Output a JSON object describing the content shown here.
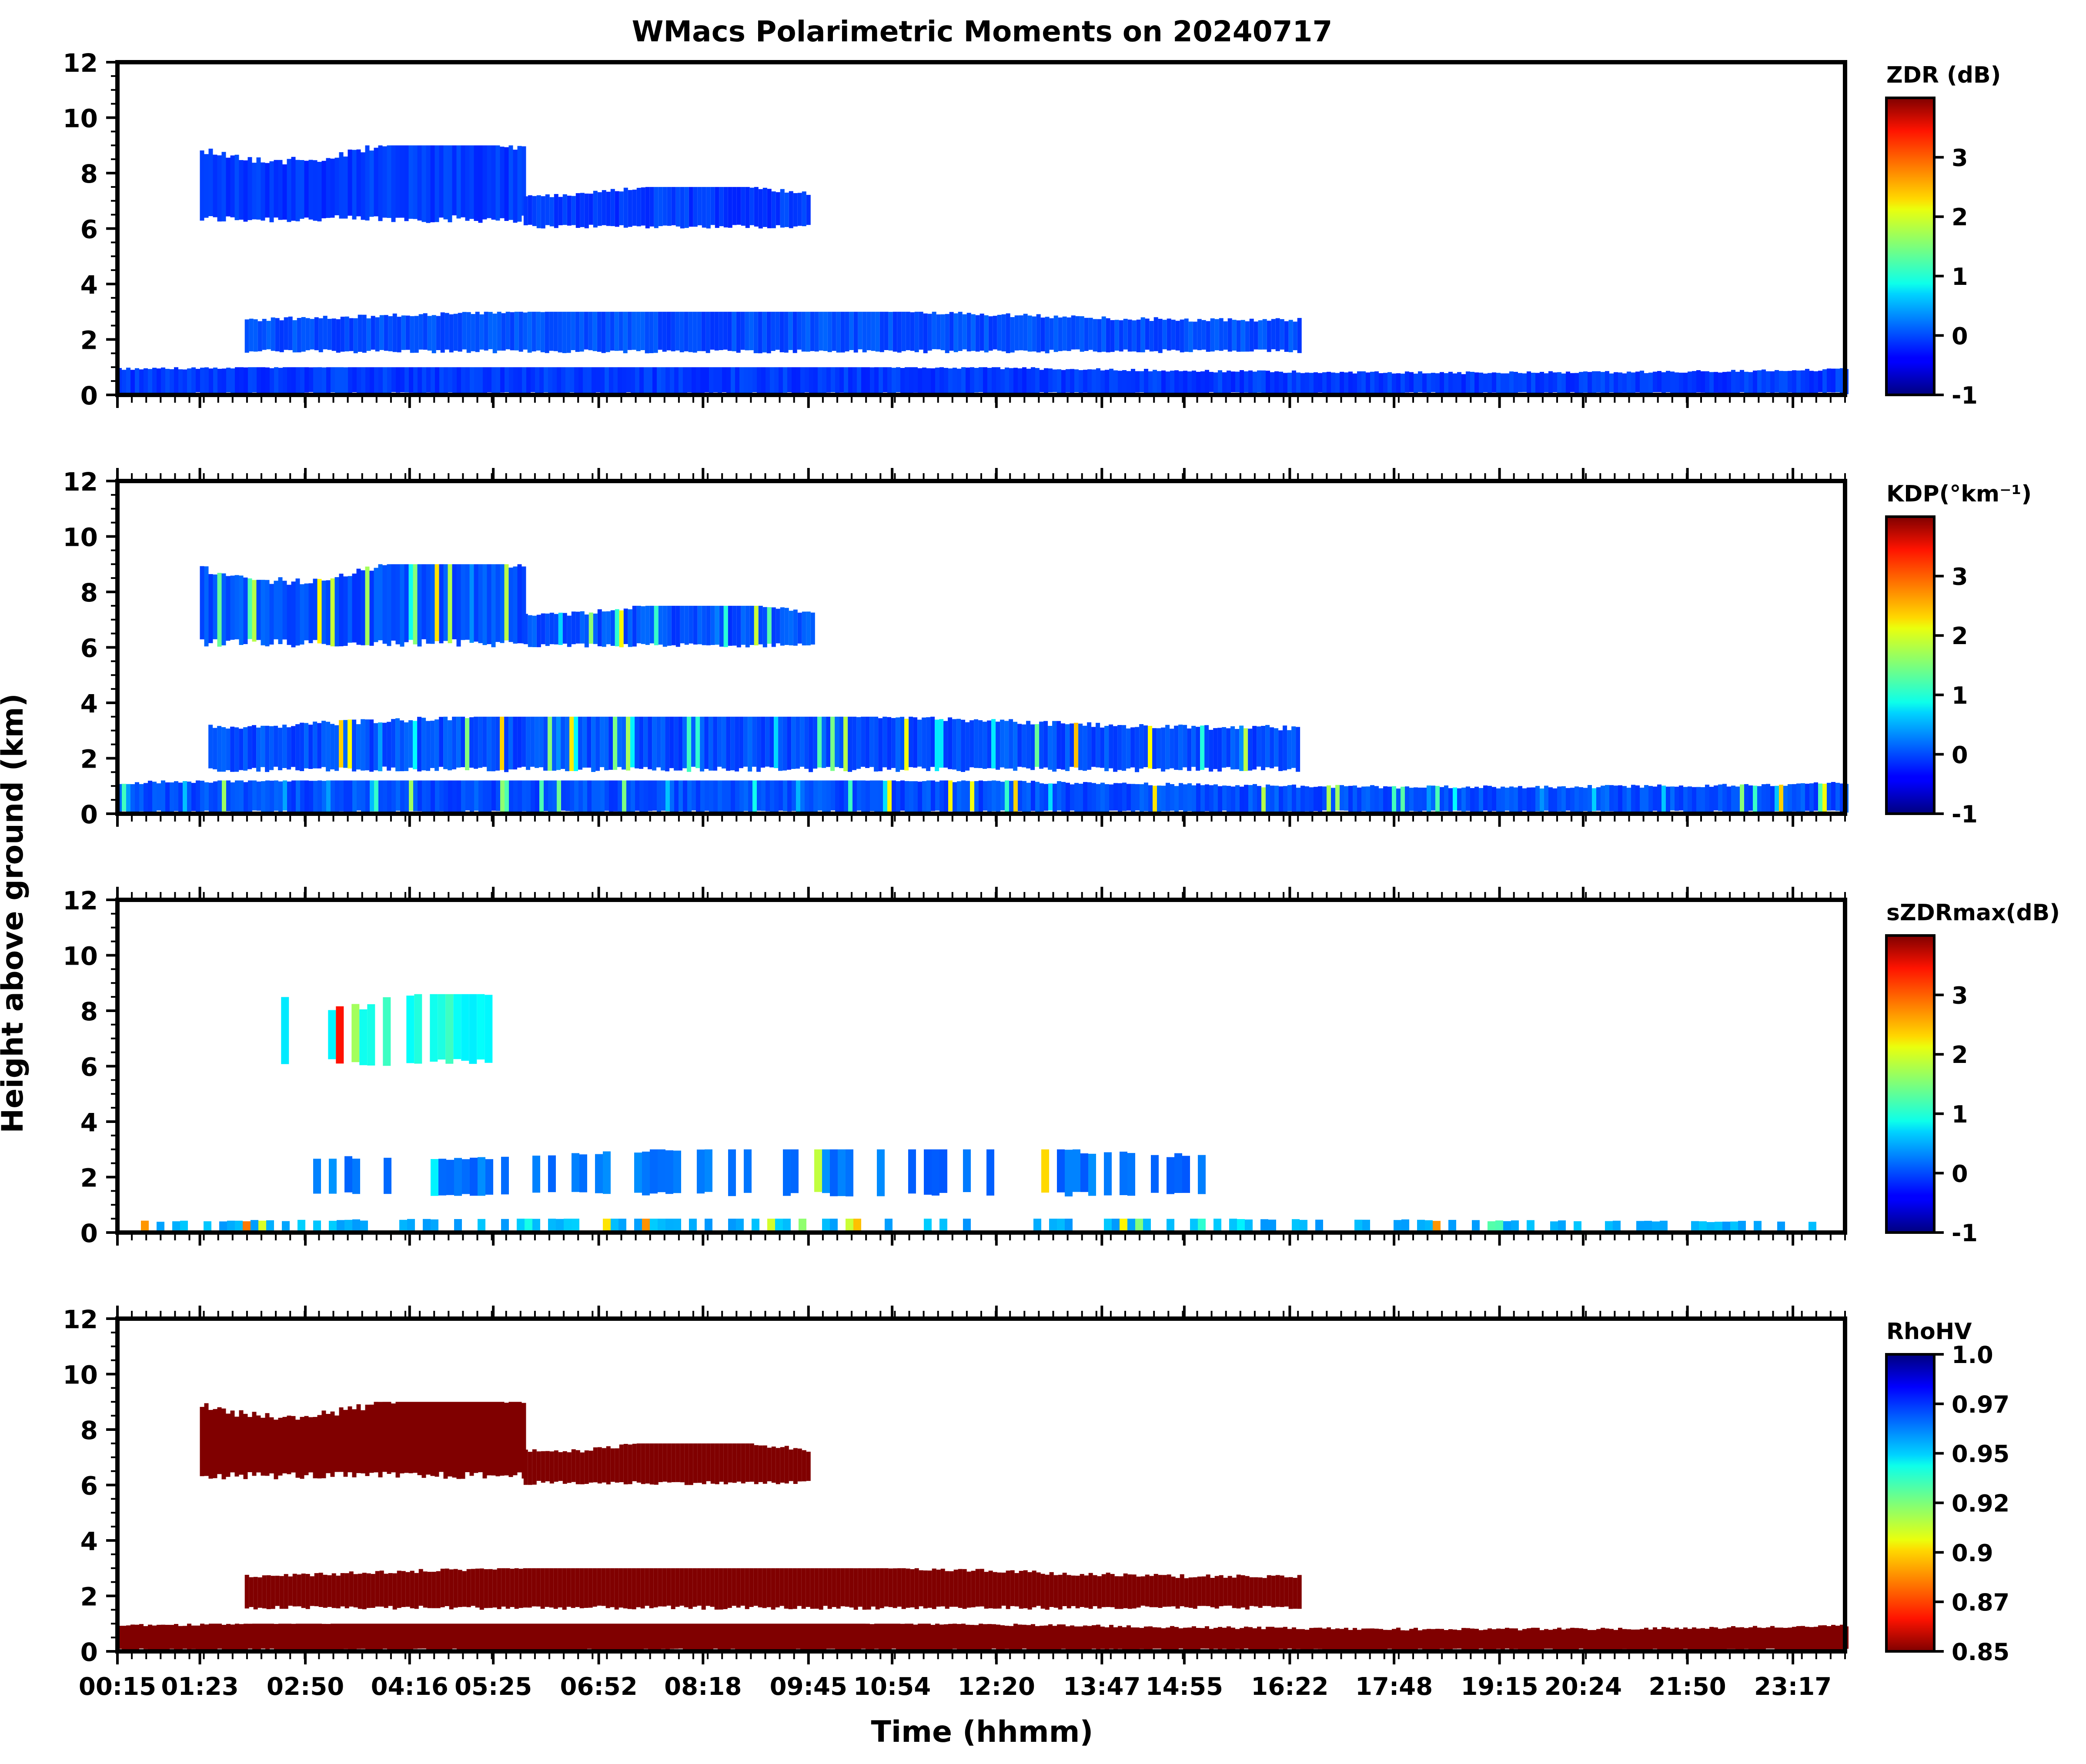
{
  "figure": {
    "title": "WMacs Polarimetric Moments on 20240717",
    "xlabel": "Time (hhmm)",
    "ylabel": "Height above ground (km)"
  },
  "chart_data": [
    {
      "type": "heatmap",
      "panel": "ZDR",
      "colorbar_label": "ZDR (dB)",
      "colorbar_range": [
        -1,
        4
      ],
      "colorbar_ticks": [
        "-1",
        "0",
        "1",
        "2",
        "3"
      ],
      "colorbar_tick_values": [
        -1,
        0,
        1,
        2,
        3
      ],
      "colormap": "jet",
      "x_range_hours": [
        0.25,
        24.0
      ],
      "x_ticks": [
        "00:15",
        "01:23",
        "02:50",
        "04:16",
        "05:25",
        "06:52",
        "08:18",
        "09:45",
        "10:54",
        "12:20",
        "13:47",
        "14:55",
        "16:22",
        "17:48",
        "19:15",
        "20:24",
        "21:50",
        "23:17"
      ],
      "ylim": [
        0,
        12
      ],
      "y_ticks": [
        "0",
        "2",
        "4",
        "6",
        "8",
        "10",
        "12"
      ],
      "features": [
        {
          "desc": "upper ice cloud",
          "t_start": "01:23",
          "t_end": "05:50",
          "z_min_km": 6.2,
          "z_max_km": 9.0,
          "value": -0.1
        },
        {
          "desc": "upper ice cloud tail",
          "t_start": "05:50",
          "t_end": "09:45",
          "z_min_km": 6.0,
          "z_max_km": 7.5,
          "value": -0.1
        },
        {
          "desc": "mid-level cloud",
          "t_start": "02:00",
          "t_end": "16:30",
          "z_min_km": 1.5,
          "z_max_km": 3.0,
          "value": 0.0
        },
        {
          "desc": "boundary-layer echoes",
          "t_start": "00:15",
          "t_end": "24:00",
          "z_min_km": 0.0,
          "z_max_km": 1.0,
          "value": -0.1
        }
      ]
    },
    {
      "type": "heatmap",
      "panel": "KDP",
      "colorbar_label": "KDP(°km⁻¹)",
      "colorbar_range": [
        -1,
        4
      ],
      "colorbar_ticks": [
        "-1",
        "0",
        "1",
        "2",
        "3"
      ],
      "colorbar_tick_values": [
        -1,
        0,
        1,
        2,
        3
      ],
      "colormap": "jet",
      "x_range_hours": [
        0.25,
        24.0
      ],
      "x_ticks": [
        "00:15",
        "01:23",
        "02:50",
        "04:16",
        "05:25",
        "06:52",
        "08:18",
        "09:45",
        "10:54",
        "12:20",
        "13:47",
        "14:55",
        "16:22",
        "17:48",
        "19:15",
        "20:24",
        "21:50",
        "23:17"
      ],
      "ylim": [
        0,
        12
      ],
      "y_ticks": [
        "0",
        "2",
        "4",
        "6",
        "8",
        "10",
        "12"
      ],
      "features": [
        {
          "desc": "upper ice cloud",
          "t_start": "01:23",
          "t_end": "05:50",
          "z_min_km": 6.0,
          "z_max_km": 9.0,
          "value": 0.0
        },
        {
          "desc": "upper ice cloud tail",
          "t_start": "05:50",
          "t_end": "09:50",
          "z_min_km": 6.0,
          "z_max_km": 7.5,
          "value": 0.0
        },
        {
          "desc": "mid-level cloud",
          "t_start": "01:30",
          "t_end": "16:30",
          "z_min_km": 1.5,
          "z_max_km": 3.5,
          "value": 0.0
        },
        {
          "desc": "boundary layer",
          "t_start": "00:15",
          "t_end": "24:00",
          "z_min_km": 0.0,
          "z_max_km": 1.2,
          "value": 0.0
        }
      ]
    },
    {
      "type": "heatmap",
      "panel": "sZDRmax",
      "colorbar_label": "sZDRmax(dB)",
      "colorbar_range": [
        -1,
        4
      ],
      "colorbar_ticks": [
        "-1",
        "0",
        "1",
        "2",
        "3"
      ],
      "colorbar_tick_values": [
        -1,
        0,
        1,
        2,
        3
      ],
      "colormap": "jet",
      "x_range_hours": [
        0.25,
        24.0
      ],
      "x_ticks": [
        "00:15",
        "01:23",
        "02:50",
        "04:16",
        "05:25",
        "06:52",
        "08:18",
        "09:45",
        "10:54",
        "12:20",
        "13:47",
        "14:55",
        "16:22",
        "17:48",
        "19:15",
        "20:24",
        "21:50",
        "23:17"
      ],
      "ylim": [
        0,
        12
      ],
      "y_ticks": [
        "0",
        "2",
        "4",
        "6",
        "8",
        "10",
        "12"
      ],
      "features": [
        {
          "desc": "upper ice streaks",
          "t_start": "02:30",
          "t_end": "05:25",
          "z_min_km": 6.0,
          "z_max_km": 8.6,
          "value": 0.9
        },
        {
          "desc": "mid-level patches",
          "t_start": "02:50",
          "t_end": "15:30",
          "z_min_km": 1.3,
          "z_max_km": 3.0,
          "value": 0.2
        },
        {
          "desc": "near-surface noise",
          "t_start": "00:15",
          "t_end": "24:00",
          "z_min_km": 0.0,
          "z_max_km": 0.5,
          "value": 0.5
        }
      ]
    },
    {
      "type": "heatmap",
      "panel": "RhoHV",
      "colorbar_label": "RhoHV",
      "colorbar_range": [
        0.85,
        1.0
      ],
      "colorbar_ticks": [
        "0.85",
        "0.87",
        "0.9",
        "0.92",
        "0.95",
        "0.97",
        "1.0"
      ],
      "colorbar_tick_values": [
        0.85,
        0.875,
        0.9,
        0.925,
        0.95,
        0.975,
        1.0
      ],
      "colormap": "jet_r",
      "x_range_hours": [
        0.25,
        24.0
      ],
      "x_ticks": [
        "00:15",
        "01:23",
        "02:50",
        "04:16",
        "05:25",
        "06:52",
        "08:18",
        "09:45",
        "10:54",
        "12:20",
        "13:47",
        "14:55",
        "16:22",
        "17:48",
        "19:15",
        "20:24",
        "21:50",
        "23:17"
      ],
      "ylim": [
        0,
        12
      ],
      "y_ticks": [
        "0",
        "2",
        "4",
        "6",
        "8",
        "10",
        "12"
      ],
      "features": [
        {
          "desc": "upper ice cloud",
          "t_start": "01:23",
          "t_end": "05:50",
          "z_min_km": 6.2,
          "z_max_km": 9.0,
          "value": 0.85
        },
        {
          "desc": "upper ice cloud tail",
          "t_start": "05:50",
          "t_end": "09:45",
          "z_min_km": 6.0,
          "z_max_km": 7.5,
          "value": 0.85
        },
        {
          "desc": "mid-level cloud",
          "t_start": "02:00",
          "t_end": "16:30",
          "z_min_km": 1.5,
          "z_max_km": 3.0,
          "value": 0.85
        },
        {
          "desc": "boundary layer",
          "t_start": "00:15",
          "t_end": "24:00",
          "z_min_km": 0.0,
          "z_max_km": 1.0,
          "value": 0.85
        }
      ]
    }
  ]
}
